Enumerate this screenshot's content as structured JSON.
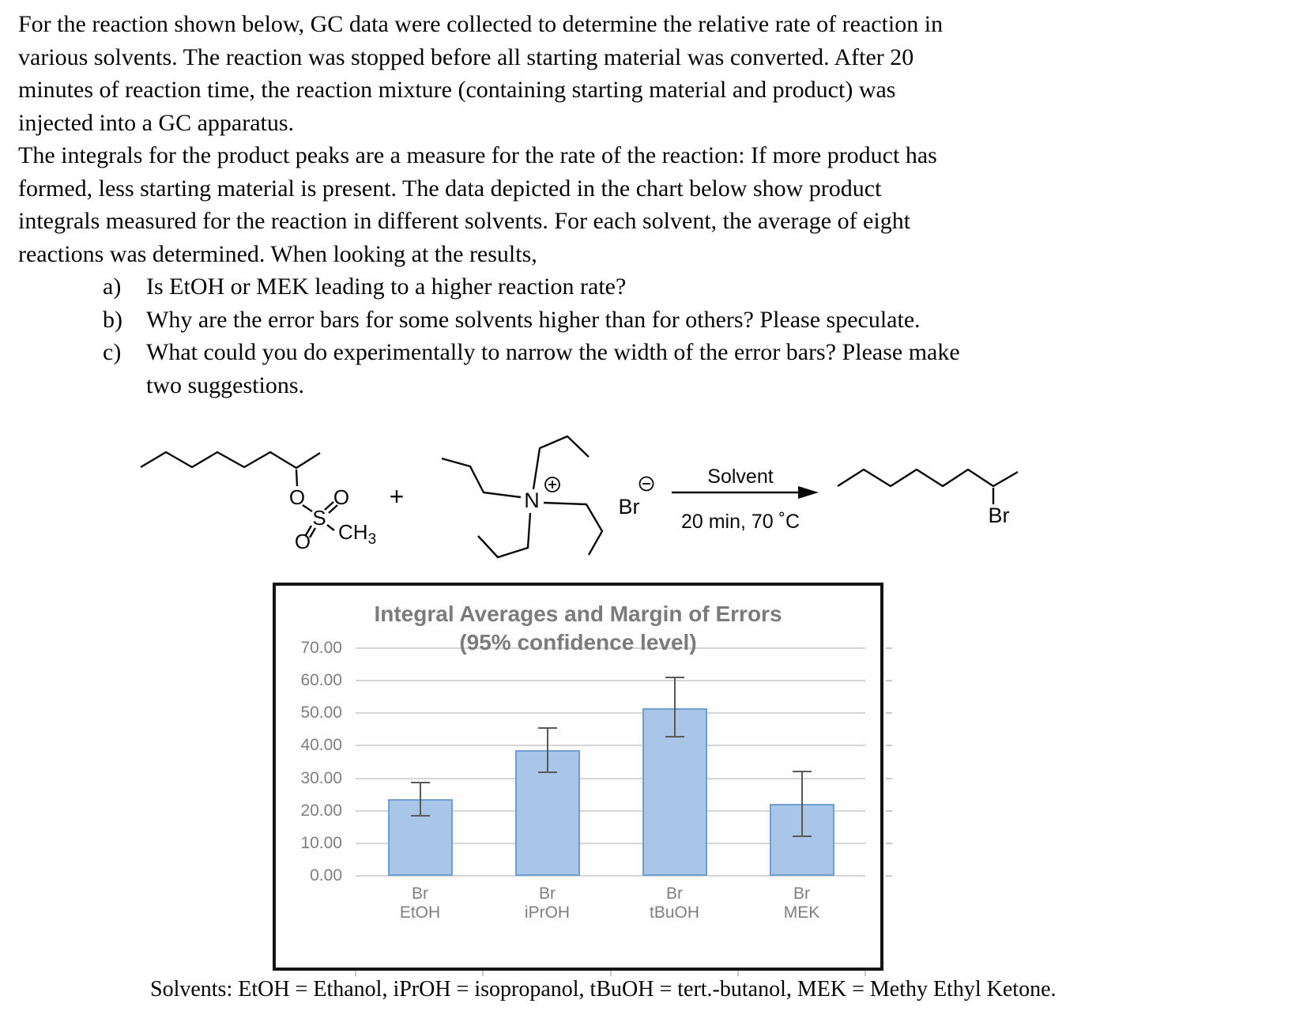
{
  "document": {
    "intro_lines": [
      "For the reaction shown below, GC data were collected to determine the relative rate of reaction in",
      "various solvents. The reaction was stopped before all starting material was converted. After 20",
      "minutes of reaction time, the reaction mixture (containing starting material and product) was",
      "injected into a GC apparatus.",
      "The integrals for the product peaks are a measure for the rate of the reaction: If more product has",
      "formed, less starting material is present. The data depicted in the chart below show product",
      "integrals measured for the reaction in different solvents. For each solvent, the average of eight",
      "reactions was determined. When looking at the results,"
    ],
    "questions": [
      {
        "label": "a)",
        "text": "Is EtOH or MEK leading to a higher reaction rate?"
      },
      {
        "label": "b)",
        "text": "Why are the error bars for some solvents higher than for others? Please speculate."
      },
      {
        "label": "c)",
        "text": "What could you do experimentally to narrow the width of the error bars? Please make",
        "continuation": "two suggestions."
      }
    ],
    "caption": "Solvents: EtOH = Ethanol, iPrOH = isopropanol, tBuOH = tert.-butanol, MEK = Methy Ethyl Ketone."
  },
  "scheme": {
    "plus": "+",
    "mesylate": {
      "o_ester": "O",
      "s": "S",
      "o_top": "O",
      "o_bottom": "O",
      "ch": "CH",
      "ch_sub": "3"
    },
    "ammonium": {
      "n": "N",
      "charge": "+"
    },
    "bromide": {
      "symbol": "Br",
      "charge": "−"
    },
    "arrow": {
      "above": "Solvent",
      "below": "20 min, 70 ˚C"
    },
    "product": {
      "halide": "Br"
    }
  },
  "chart_data": {
    "type": "bar",
    "title": "Integral Averages and Margin of Errors",
    "subtitle": "(95% confidence level)",
    "categories": [
      [
        "Br",
        "EtOH"
      ],
      [
        "Br",
        "iPrOH"
      ],
      [
        "Br",
        "tBuOH"
      ],
      [
        "Br",
        "MEK"
      ]
    ],
    "values": [
      23.5,
      38.6,
      51.5,
      22.1
    ],
    "error_low": [
      18.5,
      31.8,
      42.7,
      12.1
    ],
    "error_high": [
      28.7,
      45.5,
      61.0,
      32.2
    ],
    "ylim": [
      0,
      70
    ],
    "ytick_step": 10,
    "ytick_labels": [
      "0.00",
      "10.00",
      "20.00",
      "30.00",
      "40.00",
      "50.00",
      "60.00",
      "70.00"
    ],
    "grid": true,
    "legend": false,
    "colors": {
      "bar_fill": "#a9c6e8",
      "bar_border": "#6f9ed2",
      "error": "#595959",
      "grid": "#d6d6d6",
      "text": "#7f7f7f"
    }
  }
}
